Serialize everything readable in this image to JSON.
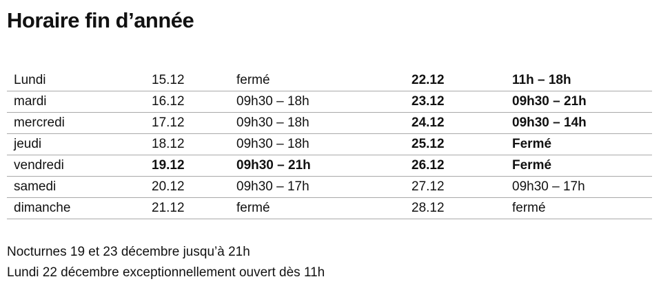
{
  "title": "Horaire fin d’année",
  "rows": [
    {
      "day": "Lundi",
      "d1": "15.12",
      "h1": "fermé",
      "d2": "22.12",
      "h2": "11h – 18h",
      "b1": false,
      "b2": true
    },
    {
      "day": "mardi",
      "d1": "16.12",
      "h1": "09h30 – 18h",
      "d2": "23.12",
      "h2": "09h30 – 21h",
      "b1": false,
      "b2": true
    },
    {
      "day": "mercredi",
      "d1": "17.12",
      "h1": "09h30 – 18h",
      "d2": "24.12",
      "h2": "09h30 – 14h",
      "b1": false,
      "b2": true
    },
    {
      "day": "jeudi",
      "d1": "18.12",
      "h1": "09h30 – 18h",
      "d2": "25.12",
      "h2": "Fermé",
      "b1": false,
      "b2": true
    },
    {
      "day": "vendredi",
      "d1": "19.12",
      "h1": "09h30 – 21h",
      "d2": "26.12",
      "h2": "Fermé",
      "b1": true,
      "b2": true
    },
    {
      "day": "samedi",
      "d1": "20.12",
      "h1": "09h30 – 17h",
      "d2": "27.12",
      "h2": "09h30 – 17h",
      "b1": false,
      "b2": false
    },
    {
      "day": "dimanche",
      "d1": "21.12",
      "h1": "fermé",
      "d2": "28.12",
      "h2": "fermé",
      "b1": false,
      "b2": false
    }
  ],
  "notes": [
    "Nocturnes 19 et 23 décembre jusqu’à 21h",
    "Lundi 22 décembre exceptionnellement ouvert dès 11h"
  ]
}
